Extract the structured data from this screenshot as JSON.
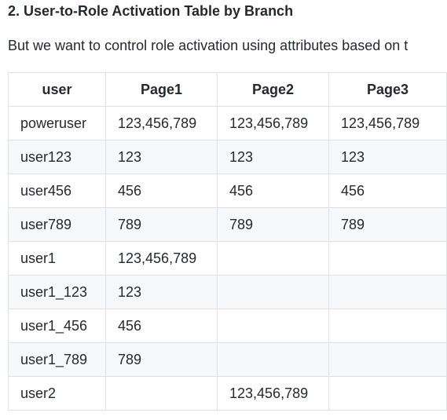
{
  "heading": "2. User-to-Role Activation Table by Branch",
  "paragraph": "But we want to control role activation using attributes based on t",
  "table": {
    "headers": [
      "user",
      "Page1",
      "Page2",
      "Page3"
    ],
    "rows": [
      [
        "poweruser",
        "123,456,789",
        "123,456,789",
        "123,456,789"
      ],
      [
        "user123",
        "123",
        "123",
        "123"
      ],
      [
        "user456",
        "456",
        "456",
        "456"
      ],
      [
        "user789",
        "789",
        "789",
        "789"
      ],
      [
        "user1",
        "123,456,789",
        "",
        ""
      ],
      [
        "user1_123",
        "123",
        "",
        ""
      ],
      [
        "user1_456",
        "456",
        "",
        ""
      ],
      [
        "user1_789",
        "789",
        "",
        ""
      ],
      [
        "user2",
        "",
        "123,456,789",
        ""
      ]
    ]
  }
}
